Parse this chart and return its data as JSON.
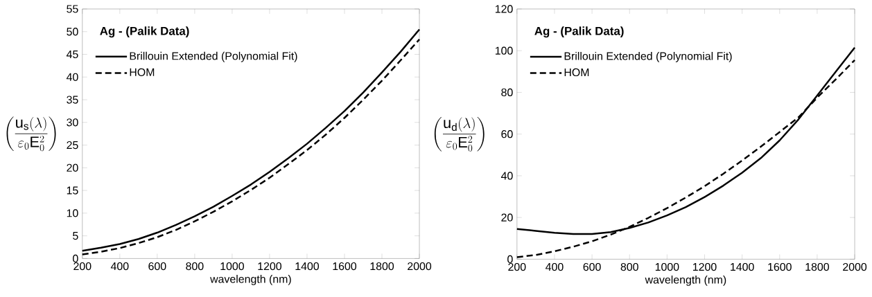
{
  "chart_data": [
    {
      "type": "line",
      "xlabel": "wavelength (nm)",
      "ylabel": "\\left(\\frac{\\mathrm{u}_{\\mathrm{s}}(\\lambda)}{\\varepsilon_{0}\\mathrm{E}_{0}^{2}}\\right)",
      "annotations": [
        "Ag - (Palik Data)"
      ],
      "legend": "top left",
      "x": [
        200,
        300,
        400,
        500,
        600,
        700,
        800,
        900,
        1000,
        1100,
        1200,
        1300,
        1400,
        1500,
        1600,
        1700,
        1800,
        1900,
        2000
      ],
      "series": [
        {
          "name": "Brillouin Extended (Polynomial Fit)",
          "color": "#000000",
          "line_style": "solid",
          "values": [
            1.7,
            2.4,
            3.2,
            4.3,
            5.7,
            7.4,
            9.3,
            11.4,
            13.8,
            16.3,
            19.1,
            22.1,
            25.3,
            28.8,
            32.5,
            36.6,
            41,
            45.6,
            50.5
          ]
        },
        {
          "name": "HOM",
          "color": "#000000",
          "line_style": "dashed",
          "values": [
            0.9,
            1.5,
            2.3,
            3.4,
            4.7,
            6.3,
            8.2,
            10.3,
            12.6,
            15.1,
            17.8,
            20.8,
            23.9,
            27.3,
            31,
            35,
            39.2,
            43.7,
            48.3
          ]
        }
      ],
      "xlim": [
        200,
        2000
      ],
      "ylim": [
        0,
        55
      ],
      "xticks": [
        200,
        400,
        600,
        800,
        1000,
        1200,
        1400,
        1600,
        1800,
        2000
      ],
      "yticks": [
        0,
        5,
        10,
        15,
        20,
        25,
        30,
        35,
        40,
        45,
        50,
        55
      ]
    },
    {
      "type": "line",
      "xlabel": "wavelength (nm)",
      "ylabel": "\\left(\\frac{\\mathrm{u}_{\\mathrm{d}}(\\lambda)}{\\varepsilon_{0}\\mathrm{E}_{0}^{2}}\\right)",
      "annotations": [
        "Ag - (Palik Data)"
      ],
      "legend": "top left",
      "x": [
        200,
        300,
        400,
        500,
        600,
        700,
        800,
        900,
        1000,
        1100,
        1200,
        1300,
        1400,
        1500,
        1600,
        1700,
        1800,
        1900,
        2000
      ],
      "series": [
        {
          "name": "Brillouin Extended (Polynomial Fit)",
          "color": "#000000",
          "line_style": "solid",
          "values": [
            14.5,
            13.6,
            12.7,
            12.1,
            12.1,
            13,
            15,
            17.6,
            21,
            25,
            29.8,
            35.3,
            41.5,
            48.5,
            57,
            67,
            78.5,
            90,
            101.5
          ]
        },
        {
          "name": "HOM",
          "color": "#000000",
          "line_style": "dashed",
          "values": [
            1,
            2,
            3.8,
            6,
            8.6,
            11.8,
            15.5,
            19.8,
            24.5,
            29.6,
            35,
            41,
            47.3,
            54,
            61,
            68,
            77.5,
            86.3,
            95.5
          ]
        }
      ],
      "xlim": [
        200,
        2000
      ],
      "ylim": [
        0,
        120
      ],
      "xticks": [
        200,
        400,
        600,
        800,
        1000,
        1200,
        1400,
        1600,
        1800,
        2000
      ],
      "yticks": [
        0,
        20,
        40,
        60,
        80,
        100,
        120
      ]
    }
  ]
}
